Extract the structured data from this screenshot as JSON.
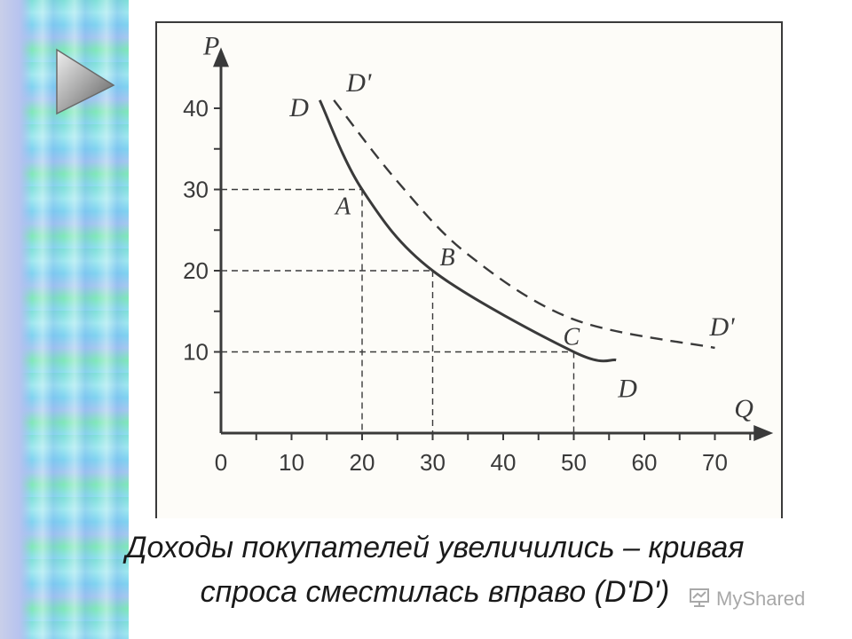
{
  "colors": {
    "curve": "#3a3a3a",
    "strip": "#7fe0d8",
    "text": "#1a1a1a",
    "watermark": "#9a9a9a"
  },
  "icons": {
    "nav": "play-arrow-icon",
    "watermark": "presentation-logo-icon"
  },
  "chart_data": {
    "type": "line",
    "ylabel": "P",
    "xlabel": "Q",
    "xlim": [
      0,
      75
    ],
    "ylim": [
      0,
      44
    ],
    "x_ticks": [
      0,
      10,
      20,
      30,
      40,
      50,
      60,
      70
    ],
    "y_ticks": [
      10,
      20,
      30,
      40
    ],
    "series": [
      {
        "name": "D",
        "style": "solid",
        "x": [
          14,
          20,
          30,
          50,
          56
        ],
        "y": [
          41,
          30,
          20,
          10,
          9
        ],
        "start_label": "D",
        "end_label": "D"
      },
      {
        "name": "D'",
        "style": "dashed",
        "x": [
          16,
          25,
          35,
          50,
          70
        ],
        "y": [
          41,
          31,
          22,
          14,
          10.5
        ],
        "start_label": "D'",
        "end_label": "D'"
      }
    ],
    "points": [
      {
        "label": "A",
        "x": 20,
        "y": 30
      },
      {
        "label": "B",
        "x": 30,
        "y": 20
      },
      {
        "label": "C",
        "x": 50,
        "y": 10
      }
    ],
    "grid": false
  },
  "caption": {
    "line1": "Доходы покупателей увеличились – кривая",
    "line2": "спроса сместилась вправо (D'D')"
  },
  "watermark": {
    "text": "MyShared"
  }
}
